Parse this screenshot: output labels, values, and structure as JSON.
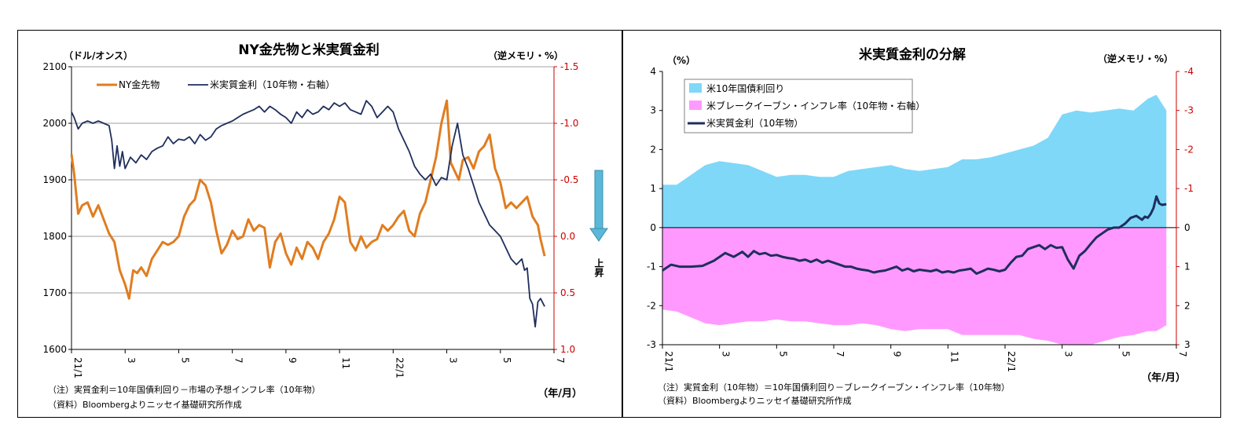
{
  "chart_data": [
    {
      "type": "line",
      "title": "NY金先物と米実質金利",
      "left_unit": "（ドル/オンス）",
      "right_unit": "（逆メモリ・%）",
      "xunit": "（年/月）",
      "x_ticks": [
        "21/1",
        "3",
        "5",
        "7",
        "9",
        "11",
        "22/1",
        "3",
        "5",
        "7"
      ],
      "ylim_left": [
        1600,
        2100
      ],
      "yticks_left": [
        "2100",
        "2000",
        "1900",
        "1800",
        "1700",
        "1600"
      ],
      "ylim_right": [
        -1.5,
        1.0
      ],
      "yticks_right": [
        "-1.5",
        "-1.0",
        "-0.5",
        "0.0",
        "0.5",
        "1.0"
      ],
      "right_axis_inverted": true,
      "arrow_label": "上昇",
      "legend_placement": "top-left",
      "series": [
        {
          "name": "NY金先物",
          "axis": "left",
          "color": "#e07d20",
          "x": [
            0,
            0.1,
            0.25,
            0.4,
            0.6,
            0.8,
            1.0,
            1.2,
            1.4,
            1.6,
            1.8,
            2.0,
            2.15,
            2.3,
            2.45,
            2.6,
            2.8,
            3.0,
            3.2,
            3.4,
            3.6,
            3.8,
            4.0,
            4.2,
            4.4,
            4.6,
            4.8,
            5.0,
            5.2,
            5.4,
            5.6,
            5.8,
            6.0,
            6.2,
            6.4,
            6.6,
            6.8,
            7.0,
            7.2,
            7.4,
            7.6,
            7.8,
            8.0,
            8.2,
            8.4,
            8.6,
            8.8,
            9.0,
            9.2,
            9.4,
            9.6,
            9.8,
            10.0,
            10.2,
            10.4,
            10.6,
            10.8,
            11.0,
            11.2,
            11.4,
            11.6,
            11.8,
            12.0,
            12.2,
            12.4,
            12.6,
            12.8,
            13.0,
            13.2,
            13.4,
            13.6,
            13.8,
            14.0,
            14.15,
            14.3,
            14.45,
            14.6,
            14.8,
            15.0,
            15.2,
            15.4,
            15.6,
            15.8,
            16.0,
            16.2,
            16.4,
            16.6,
            16.8,
            17.0,
            17.2,
            17.4,
            17.5,
            17.65
          ],
          "y": [
            1945,
            1910,
            1840,
            1855,
            1860,
            1835,
            1855,
            1830,
            1805,
            1790,
            1740,
            1715,
            1690,
            1740,
            1735,
            1745,
            1730,
            1760,
            1775,
            1790,
            1785,
            1790,
            1800,
            1835,
            1855,
            1865,
            1900,
            1890,
            1860,
            1810,
            1770,
            1785,
            1810,
            1795,
            1800,
            1830,
            1810,
            1820,
            1815,
            1745,
            1790,
            1805,
            1770,
            1750,
            1780,
            1760,
            1790,
            1780,
            1760,
            1790,
            1805,
            1830,
            1870,
            1860,
            1790,
            1775,
            1800,
            1780,
            1790,
            1795,
            1820,
            1810,
            1820,
            1835,
            1845,
            1810,
            1800,
            1840,
            1860,
            1900,
            1940,
            2000,
            2040,
            1930,
            1915,
            1900,
            1935,
            1940,
            1920,
            1950,
            1960,
            1980,
            1920,
            1895,
            1850,
            1860,
            1850,
            1860,
            1870,
            1835,
            1820,
            1795,
            1765
          ]
        },
        {
          "name": "米実質金利（10年物・右軸）",
          "axis": "right",
          "color": "#1f2e5c",
          "x": [
            0,
            0.1,
            0.25,
            0.4,
            0.6,
            0.8,
            1.0,
            1.2,
            1.4,
            1.5,
            1.6,
            1.7,
            1.8,
            1.9,
            2.0,
            2.2,
            2.4,
            2.6,
            2.8,
            3.0,
            3.2,
            3.4,
            3.6,
            3.8,
            4.0,
            4.2,
            4.4,
            4.6,
            4.8,
            5.0,
            5.2,
            5.4,
            5.6,
            5.8,
            6.0,
            6.2,
            6.4,
            6.6,
            6.8,
            7.0,
            7.2,
            7.4,
            7.6,
            7.8,
            8.0,
            8.2,
            8.4,
            8.6,
            8.8,
            9.0,
            9.2,
            9.4,
            9.6,
            9.8,
            10.0,
            10.2,
            10.4,
            10.6,
            10.8,
            11.0,
            11.2,
            11.4,
            11.6,
            11.8,
            12.0,
            12.2,
            12.4,
            12.6,
            12.8,
            13.0,
            13.2,
            13.4,
            13.6,
            13.8,
            14.0,
            14.2,
            14.4,
            14.6,
            14.8,
            15.0,
            15.2,
            15.4,
            15.6,
            15.8,
            16.0,
            16.2,
            16.4,
            16.6,
            16.8,
            16.9,
            17.0,
            17.1,
            17.2,
            17.3,
            17.4,
            17.5,
            17.65
          ],
          "y": [
            -1.1,
            -1.05,
            -0.95,
            -1.0,
            -1.02,
            -1.0,
            -1.02,
            -1.0,
            -0.98,
            -0.85,
            -0.6,
            -0.8,
            -0.62,
            -0.75,
            -0.6,
            -0.7,
            -0.65,
            -0.72,
            -0.68,
            -0.75,
            -0.78,
            -0.8,
            -0.88,
            -0.82,
            -0.86,
            -0.85,
            -0.88,
            -0.82,
            -0.9,
            -0.85,
            -0.88,
            -0.95,
            -0.98,
            -1.0,
            -1.02,
            -1.05,
            -1.08,
            -1.1,
            -1.12,
            -1.15,
            -1.1,
            -1.15,
            -1.12,
            -1.08,
            -1.05,
            -1.0,
            -1.1,
            -1.05,
            -1.12,
            -1.08,
            -1.1,
            -1.15,
            -1.12,
            -1.18,
            -1.15,
            -1.18,
            -1.12,
            -1.1,
            -1.08,
            -1.2,
            -1.15,
            -1.05,
            -1.1,
            -1.15,
            -1.1,
            -0.95,
            -0.85,
            -0.75,
            -0.62,
            -0.55,
            -0.5,
            -0.55,
            -0.45,
            -0.52,
            -0.5,
            -0.8,
            -1.0,
            -0.72,
            -0.6,
            -0.45,
            -0.3,
            -0.2,
            -0.1,
            -0.05,
            0.0,
            0.1,
            0.2,
            0.25,
            0.2,
            0.3,
            0.28,
            0.55,
            0.6,
            0.8,
            0.58,
            0.55,
            0.62
          ]
        }
      ]
    },
    {
      "type": "area",
      "title": "米実質金利の分解",
      "left_unit": "（%）",
      "right_unit": "（逆メモリ・%）",
      "xunit": "（年/月）",
      "x_ticks": [
        "21/1",
        "3",
        "5",
        "7",
        "9",
        "11",
        "22/1",
        "3",
        "5",
        "7"
      ],
      "ylim_left": [
        -3,
        4
      ],
      "yticks_left": [
        "4",
        "3",
        "2",
        "1",
        "0",
        "-1",
        "-2",
        "-3"
      ],
      "ylim_right": [
        -4,
        3
      ],
      "yticks_right": [
        "-4",
        "-3",
        "-2",
        "-1",
        "0",
        "1",
        "2",
        "3"
      ],
      "right_axis_inverted": true,
      "legend_placement": "top-left",
      "series": [
        {
          "name": "米10年国債利回り",
          "color": "#7fd8f8",
          "x": [
            0,
            0.5,
            1.0,
            1.5,
            2.0,
            2.5,
            3.0,
            3.5,
            4.0,
            4.5,
            5.0,
            5.5,
            6.0,
            6.5,
            7.0,
            7.5,
            8.0,
            8.5,
            9.0,
            9.5,
            10.0,
            10.5,
            11.0,
            11.5,
            12.0,
            12.5,
            13.0,
            13.5,
            14.0,
            14.5,
            15.0,
            15.5,
            16.0,
            16.5,
            17.0,
            17.3,
            17.65
          ],
          "y": [
            1.1,
            1.1,
            1.35,
            1.6,
            1.7,
            1.65,
            1.6,
            1.45,
            1.3,
            1.35,
            1.35,
            1.3,
            1.3,
            1.45,
            1.5,
            1.55,
            1.6,
            1.5,
            1.45,
            1.5,
            1.55,
            1.75,
            1.75,
            1.8,
            1.9,
            2.0,
            2.1,
            2.3,
            2.9,
            3.0,
            2.95,
            3.0,
            3.05,
            3.0,
            3.3,
            3.4,
            3.0
          ]
        },
        {
          "name": "米ブレークイーブン・インフレ率（10年物・右軸）",
          "color": "#ff99ff",
          "x": [
            0,
            0.5,
            1.0,
            1.5,
            2.0,
            2.5,
            3.0,
            3.5,
            4.0,
            4.5,
            5.0,
            5.5,
            6.0,
            6.5,
            7.0,
            7.5,
            8.0,
            8.5,
            9.0,
            9.5,
            10.0,
            10.5,
            11.0,
            11.5,
            12.0,
            12.5,
            13.0,
            13.5,
            14.0,
            14.5,
            15.0,
            15.5,
            16.0,
            16.5,
            17.0,
            17.3,
            17.65
          ],
          "y": [
            2.1,
            2.15,
            2.3,
            2.45,
            2.5,
            2.45,
            2.4,
            2.4,
            2.35,
            2.4,
            2.4,
            2.45,
            2.5,
            2.5,
            2.45,
            2.5,
            2.6,
            2.65,
            2.6,
            2.6,
            2.6,
            2.75,
            2.75,
            2.75,
            2.75,
            2.75,
            2.85,
            2.9,
            3.0,
            3.0,
            3.0,
            2.9,
            2.8,
            2.75,
            2.65,
            2.65,
            2.5
          ]
        },
        {
          "name": "米実質金利（10年物）",
          "color": "#1f2e5c",
          "x": [
            0,
            0.3,
            0.6,
            1.0,
            1.4,
            1.8,
            2.2,
            2.5,
            2.8,
            3.0,
            3.2,
            3.4,
            3.6,
            3.8,
            4.0,
            4.2,
            4.4,
            4.6,
            4.8,
            5.0,
            5.2,
            5.4,
            5.6,
            5.8,
            6.0,
            6.2,
            6.4,
            6.6,
            6.8,
            7.0,
            7.2,
            7.4,
            7.6,
            7.8,
            8.0,
            8.2,
            8.4,
            8.6,
            8.8,
            9.0,
            9.2,
            9.4,
            9.6,
            9.8,
            10.0,
            10.2,
            10.4,
            10.6,
            10.8,
            11.0,
            11.2,
            11.4,
            11.6,
            11.8,
            12.0,
            12.2,
            12.4,
            12.6,
            12.8,
            13.0,
            13.2,
            13.4,
            13.6,
            13.8,
            14.0,
            14.2,
            14.4,
            14.6,
            14.8,
            15.0,
            15.2,
            15.4,
            15.6,
            15.8,
            16.0,
            16.2,
            16.4,
            16.6,
            16.8,
            16.9,
            17.0,
            17.1,
            17.2,
            17.3,
            17.4,
            17.5,
            17.65
          ],
          "y": [
            -1.1,
            -0.95,
            -1.0,
            -1.0,
            -0.98,
            -0.85,
            -0.65,
            -0.75,
            -0.62,
            -0.75,
            -0.6,
            -0.68,
            -0.65,
            -0.72,
            -0.7,
            -0.75,
            -0.78,
            -0.8,
            -0.85,
            -0.82,
            -0.88,
            -0.82,
            -0.9,
            -0.85,
            -0.9,
            -0.95,
            -1.0,
            -1.0,
            -1.05,
            -1.08,
            -1.1,
            -1.15,
            -1.12,
            -1.1,
            -1.05,
            -1.0,
            -1.1,
            -1.05,
            -1.12,
            -1.08,
            -1.1,
            -1.12,
            -1.08,
            -1.15,
            -1.12,
            -1.15,
            -1.1,
            -1.08,
            -1.05,
            -1.18,
            -1.12,
            -1.05,
            -1.08,
            -1.12,
            -1.08,
            -0.9,
            -0.75,
            -0.72,
            -0.55,
            -0.5,
            -0.45,
            -0.55,
            -0.45,
            -0.52,
            -0.5,
            -0.82,
            -1.05,
            -0.72,
            -0.6,
            -0.42,
            -0.25,
            -0.15,
            -0.05,
            0.0,
            0.0,
            0.1,
            0.25,
            0.3,
            0.2,
            0.28,
            0.25,
            0.35,
            0.5,
            0.8,
            0.62,
            0.58,
            0.6
          ]
        }
      ]
    }
  ],
  "notes": {
    "left_note1": "（注）実質金利＝10年国債利回り－市場の予想インフレ率（10年物）",
    "left_note2": "（資料）Bloombergよりニッセイ基礎研究所作成",
    "right_note1": "（注）実質金利（10年物）＝10年国債利回り－ブレークイーブン・インフレ率（10年物）",
    "right_note2": "（資料）Bloombergよりニッセイ基礎研究所作成"
  }
}
